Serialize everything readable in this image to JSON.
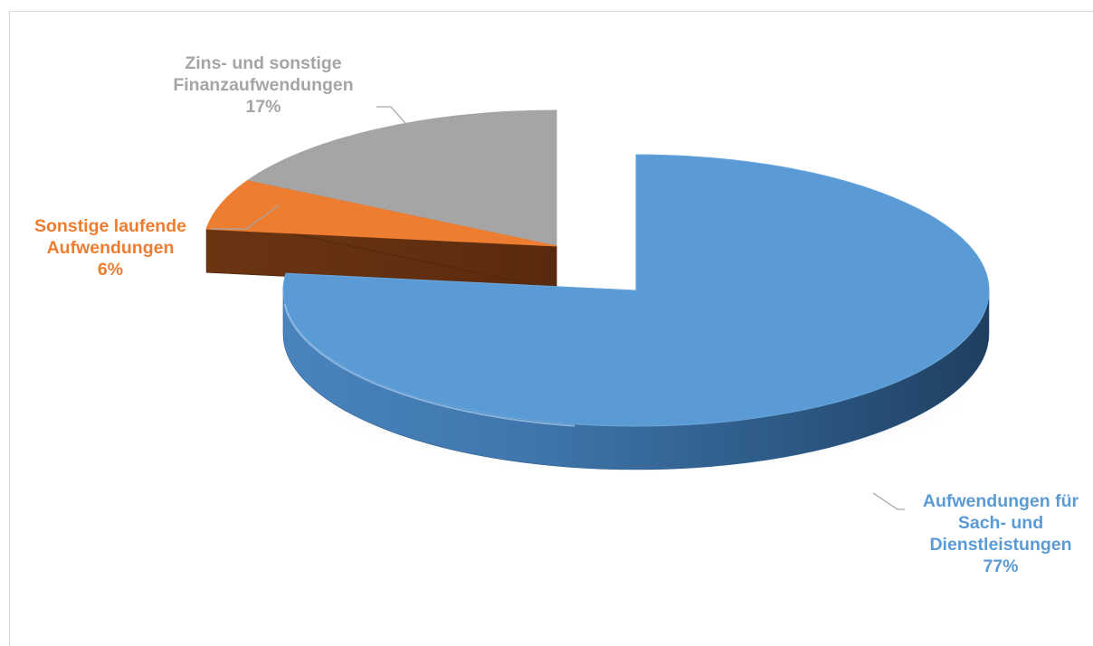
{
  "chart_data": {
    "type": "pie",
    "title": "",
    "slices": [
      {
        "label_lines": [
          "Aufwendungen für",
          "Sach- und",
          "Dienstleistungen"
        ],
        "value": 77,
        "value_label": "77%",
        "color": "#5b9bd5",
        "exploded": true
      },
      {
        "label_lines": [
          "Sonstige laufende",
          "Aufwendungen"
        ],
        "value": 6,
        "value_label": "6%",
        "color": "#ed7d31"
      },
      {
        "label_lines": [
          "Zins- und sonstige",
          "Finanzaufwendungen"
        ],
        "value": 17,
        "value_label": "17%",
        "color": "#a5a5a5"
      }
    ],
    "three_d": true,
    "legend": "none",
    "label_colors": [
      "#5b9bd5",
      "#ed7d31",
      "#a5a5a5"
    ]
  }
}
